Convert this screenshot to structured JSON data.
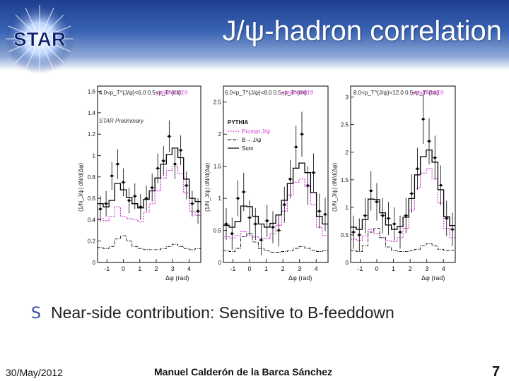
{
  "slide": {
    "title": "J/ψ-hadron correlation",
    "logo_text": "STAR",
    "bullet_icon": "bullet-s-icon",
    "bullet_text": "Near-side contribution: Sensitive to B-feeddown",
    "footer_date": "30/May/2012",
    "footer_author": "Manuel Calderón de la Barca Sánchez",
    "slide_number": "7",
    "colors": {
      "header": "#2a4fa0",
      "prompt": "#d43ad4",
      "b_feed": "#000000",
      "sum": "#000000"
    }
  },
  "chart_data": [
    {
      "type": "line",
      "panel_label": "4.0<p_T^{J/ψ}<6.0  0.5<p_T^{trk}",
      "chi2": "χ²/ndf=23/19",
      "preliminary": "STAR Preliminary",
      "ylabel": "(1/N_J/ψ) dN/d(Δφ)",
      "xlabel": "Δφ (rad)",
      "x_ticks": [
        "-1",
        "0",
        "1",
        "2",
        "3",
        "4"
      ],
      "y_ticks": [
        "0",
        "0.2",
        "0.4",
        "0.6",
        "0.8",
        "1",
        "1.2",
        "1.4",
        "1.6"
      ],
      "xlim": [
        -1.57,
        4.71
      ],
      "ylim": [
        0,
        1.65
      ],
      "x": [
        -1.4,
        -1.05,
        -0.7,
        -0.35,
        0.0,
        0.35,
        0.7,
        1.05,
        1.4,
        1.75,
        2.09,
        2.44,
        2.79,
        3.14,
        3.49,
        3.84,
        4.19,
        4.54
      ],
      "series": [
        {
          "name": "Prompt J/ψ",
          "values": [
            0.41,
            0.39,
            0.43,
            0.52,
            0.43,
            0.41,
            0.4,
            0.38,
            0.47,
            0.55,
            0.67,
            0.79,
            0.86,
            0.9,
            0.83,
            0.65,
            0.48,
            0.44
          ]
        },
        {
          "name": "B→ J/ψ",
          "values": [
            0.14,
            0.13,
            0.15,
            0.22,
            0.25,
            0.2,
            0.15,
            0.13,
            0.12,
            0.12,
            0.12,
            0.13,
            0.15,
            0.17,
            0.15,
            0.13,
            0.12,
            0.13
          ]
        },
        {
          "name": "Sum",
          "values": [
            0.55,
            0.52,
            0.58,
            0.74,
            0.68,
            0.61,
            0.55,
            0.51,
            0.59,
            0.67,
            0.79,
            0.92,
            1.01,
            1.07,
            0.98,
            0.78,
            0.6,
            0.57
          ]
        },
        {
          "name": "Data",
          "values": [
            0.5,
            0.55,
            0.81,
            0.92,
            0.75,
            0.58,
            0.62,
            0.52,
            0.6,
            0.7,
            0.88,
            0.95,
            1.18,
            0.92,
            1.05,
            0.72,
            0.55,
            0.48
          ]
        }
      ],
      "errors": [
        0.12,
        0.12,
        0.13,
        0.14,
        0.13,
        0.12,
        0.12,
        0.12,
        0.12,
        0.13,
        0.14,
        0.14,
        0.15,
        0.14,
        0.14,
        0.13,
        0.12,
        0.12
      ]
    },
    {
      "type": "line",
      "panel_label": "6.0<p_T^{J/ψ}<8.0  0.5<p_T^{trk}",
      "chi2": "χ²/ndf=34/19",
      "legend_title": "PYTHIA",
      "ylabel": "(1/N_J/ψ) dN/d(Δφ)",
      "xlabel": "Δφ (rad)",
      "x_ticks": [
        "-1",
        "0",
        "1",
        "2",
        "3",
        "4"
      ],
      "y_ticks": [
        "0",
        "0.5",
        "1",
        "1.5",
        "2",
        "2.5"
      ],
      "xlim": [
        -1.57,
        4.71
      ],
      "ylim": [
        0,
        2.75
      ],
      "x": [
        -1.4,
        -1.05,
        -0.7,
        -0.35,
        0.0,
        0.35,
        0.7,
        1.05,
        1.4,
        1.75,
        2.09,
        2.44,
        2.79,
        3.14,
        3.49,
        3.84,
        4.19,
        4.54
      ],
      "series": [
        {
          "name": "Prompt J/ψ",
          "values": [
            0.4,
            0.38,
            0.42,
            0.48,
            0.42,
            0.4,
            0.38,
            0.37,
            0.45,
            0.58,
            0.8,
            1.05,
            1.25,
            1.3,
            1.18,
            0.9,
            0.55,
            0.42
          ]
        },
        {
          "name": "B→ J/ψ",
          "values": [
            0.18,
            0.17,
            0.22,
            0.4,
            0.45,
            0.32,
            0.22,
            0.18,
            0.16,
            0.16,
            0.17,
            0.18,
            0.22,
            0.25,
            0.22,
            0.19,
            0.17,
            0.18
          ]
        },
        {
          "name": "Sum",
          "values": [
            0.58,
            0.55,
            0.64,
            0.88,
            0.87,
            0.72,
            0.6,
            0.55,
            0.61,
            0.74,
            0.97,
            1.23,
            1.47,
            1.55,
            1.4,
            1.09,
            0.72,
            0.6
          ]
        },
        {
          "name": "Data",
          "values": [
            0.6,
            0.45,
            1.0,
            1.1,
            0.7,
            0.6,
            0.35,
            0.65,
            0.55,
            0.5,
            0.9,
            1.3,
            1.8,
            2.0,
            1.2,
            1.4,
            0.8,
            0.75
          ]
        }
      ],
      "errors": [
        0.25,
        0.25,
        0.28,
        0.3,
        0.27,
        0.25,
        0.24,
        0.25,
        0.25,
        0.25,
        0.28,
        0.3,
        0.33,
        0.35,
        0.3,
        0.3,
        0.27,
        0.26
      ]
    },
    {
      "type": "line",
      "panel_label": "8.0<p_T^{J/ψ}<12.0  0.5<p_T^{trk}",
      "chi2": "χ²/ndf=24/19",
      "ylabel": "(1/N_J/ψ) dN/d(Δφ)",
      "xlabel": "Δφ (rad)",
      "x_ticks": [
        "-1",
        "0",
        "1",
        "2",
        "3",
        "4"
      ],
      "y_ticks": [
        "0",
        "0.5",
        "1",
        "1.5",
        "2",
        "2.5",
        "3"
      ],
      "xlim": [
        -1.57,
        4.71
      ],
      "ylim": [
        0,
        3.2
      ],
      "x": [
        -1.4,
        -1.05,
        -0.7,
        -0.35,
        0.0,
        0.35,
        0.7,
        1.05,
        1.4,
        1.75,
        2.09,
        2.44,
        2.79,
        3.14,
        3.49,
        3.84,
        4.19,
        4.54
      ],
      "series": [
        {
          "name": "Prompt J/ψ",
          "values": [
            0.42,
            0.4,
            0.48,
            0.6,
            0.52,
            0.45,
            0.4,
            0.38,
            0.45,
            0.62,
            0.95,
            1.35,
            1.62,
            1.7,
            1.52,
            1.08,
            0.62,
            0.45
          ]
        },
        {
          "name": "B→ J/ψ",
          "values": [
            0.22,
            0.2,
            0.3,
            0.55,
            0.62,
            0.45,
            0.28,
            0.22,
            0.2,
            0.2,
            0.21,
            0.24,
            0.3,
            0.34,
            0.3,
            0.24,
            0.21,
            0.22
          ]
        },
        {
          "name": "Sum",
          "values": [
            0.64,
            0.6,
            0.78,
            1.15,
            1.14,
            0.9,
            0.68,
            0.6,
            0.65,
            0.82,
            1.16,
            1.59,
            1.92,
            2.04,
            1.82,
            1.32,
            0.83,
            0.67
          ]
        },
        {
          "name": "Data",
          "values": [
            0.55,
            0.5,
            0.85,
            1.3,
            1.1,
            0.85,
            0.8,
            0.7,
            0.55,
            0.85,
            1.25,
            1.7,
            2.6,
            2.2,
            1.9,
            1.4,
            0.8,
            0.6
          ]
        }
      ],
      "errors": [
        0.3,
        0.3,
        0.32,
        0.36,
        0.34,
        0.32,
        0.3,
        0.3,
        0.3,
        0.32,
        0.35,
        0.38,
        0.45,
        0.42,
        0.4,
        0.36,
        0.32,
        0.3
      ]
    }
  ]
}
